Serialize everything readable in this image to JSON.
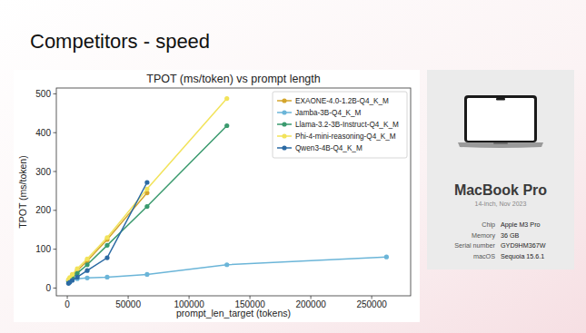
{
  "slide": {
    "title": "Competitors - speed"
  },
  "chart_data": {
    "type": "line",
    "title": "TPOT (ms/token) vs prompt length",
    "x_label": "prompt_len_target (tokens)",
    "y_label": "TPOT (ms/token)",
    "x": [
      1024,
      2048,
      4096,
      8192,
      16384,
      32768,
      65536,
      131072,
      262144
    ],
    "series": [
      {
        "name": "EXAONE-4.0-1.2B-Q4_K_M",
        "color": "#d4a52c",
        "values": [
          20,
          24,
          32,
          45,
          70,
          125,
          245,
          null,
          null
        ]
      },
      {
        "name": "Jamba-3B-Q4_K_M",
        "color": "#6bb5d8",
        "values": [
          20,
          21,
          22,
          24,
          26,
          28,
          35,
          60,
          80
        ]
      },
      {
        "name": "Llama-3.2-3B-Instruct-Q4_K_M",
        "color": "#3a9a6e",
        "values": [
          17,
          20,
          27,
          38,
          60,
          110,
          210,
          418,
          null
        ]
      },
      {
        "name": "Phi-4-mini-reasoning-Q4_K_M",
        "color": "#f2e35a",
        "values": [
          22,
          27,
          35,
          50,
          75,
          130,
          255,
          488,
          null
        ]
      },
      {
        "name": "Qwen3-4B-Q4_K_M",
        "color": "#2b6aa3",
        "values": [
          12,
          15,
          20,
          28,
          45,
          78,
          272,
          null,
          null
        ]
      }
    ],
    "xlim": [
      -9000,
      282000
    ],
    "xticks": [
      0,
      50000,
      100000,
      150000,
      200000,
      250000
    ],
    "ylim": [
      -20,
      515
    ],
    "yticks": [
      0,
      100,
      200,
      300,
      400,
      500
    ],
    "grid": false,
    "legend": "upper right",
    "marker": "circle"
  },
  "device": {
    "name": "MacBook Pro",
    "subtitle": "14-inch, Nov 2023",
    "specs": [
      {
        "label": "Chip",
        "value": "Apple M3 Pro"
      },
      {
        "label": "Memory",
        "value": "36 GB"
      },
      {
        "label": "Serial number",
        "value": "GYD9HM367W"
      },
      {
        "label": "macOS",
        "value": "Sequoia 15.6.1"
      }
    ]
  }
}
